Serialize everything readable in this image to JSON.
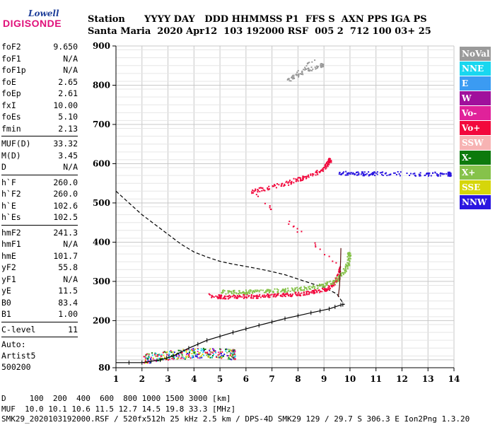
{
  "logo": {
    "line1": "Lowell",
    "line2": "DIGISONDE"
  },
  "header": {
    "labels": "Station      YYYY DAY   DDD HHMMSS P1  FFS S  AXN PPS IGA PS",
    "values": "Santa Maria  2020 Apr12  103 192000 RSF  005 2  712 100 03+ 25"
  },
  "params": [
    {
      "group": [
        {
          "name": "foF2",
          "value": "9.650"
        },
        {
          "name": "foF1",
          "value": "N/A"
        },
        {
          "name": "foF1p",
          "value": "N/A"
        },
        {
          "name": "foE",
          "value": "2.65"
        },
        {
          "name": "foEp",
          "value": "2.61"
        },
        {
          "name": "fxI",
          "value": "10.00"
        },
        {
          "name": "foEs",
          "value": "5.10"
        },
        {
          "name": "fmin",
          "value": "2.13"
        }
      ]
    },
    {
      "group": [
        {
          "name": "MUF(D)",
          "value": "33.32"
        },
        {
          "name": "M(D)",
          "value": "3.45"
        },
        {
          "name": "D",
          "value": "N/A"
        }
      ]
    },
    {
      "group": [
        {
          "name": "h`F",
          "value": "260.0"
        },
        {
          "name": "h`F2",
          "value": "260.0"
        },
        {
          "name": "h`E",
          "value": "102.6"
        },
        {
          "name": "h`Es",
          "value": "102.5"
        }
      ]
    },
    {
      "group": [
        {
          "name": "hmF2",
          "value": "241.3"
        },
        {
          "name": "hmF1",
          "value": "N/A"
        },
        {
          "name": "hmE",
          "value": "101.7"
        },
        {
          "name": "yF2",
          "value": "55.8"
        },
        {
          "name": "yF1",
          "value": "N/A"
        },
        {
          "name": "yE",
          "value": "11.5"
        },
        {
          "name": "B0",
          "value": "83.4"
        },
        {
          "name": "B1",
          "value": "1.00"
        }
      ]
    },
    {
      "group": [
        {
          "name": "C-level",
          "value": "11"
        }
      ]
    }
  ],
  "auto": {
    "line1": "Auto:",
    "line2": "Artist5",
    "line3": "500200"
  },
  "legend": [
    {
      "label": "NoVal",
      "color": "#9a9a9a"
    },
    {
      "label": "NNE",
      "color": "#19d7f0"
    },
    {
      "label": "E",
      "color": "#3b9bf2"
    },
    {
      "label": "W",
      "color": "#a0109c"
    },
    {
      "label": "Vo-",
      "color": "#e0229a"
    },
    {
      "label": "Vo+",
      "color": "#f2083c"
    },
    {
      "label": "SSW",
      "color": "#f7b3b3"
    },
    {
      "label": "X-",
      "color": "#0d7a0d"
    },
    {
      "label": "X+",
      "color": "#86c24a"
    },
    {
      "label": "SSE",
      "color": "#d6d60a"
    },
    {
      "label": "NNW",
      "color": "#2a16e0"
    }
  ],
  "footer": {
    "line1": "D     100  200  400  600  800 1000 1500 3000 [km]",
    "line2": "MUF  10.0 10.1 10.6 11.5 12.7 14.5 19.8 33.3 [MHz]",
    "line3": "SMK29_2020103192000.RSF / 520fx512h 25 kHz 2.5 km / DPS-4D SMK29 129 / 29.7 S 306.3 E Ion2Png 1.3.20"
  },
  "chart_data": {
    "type": "scatter",
    "xlim": [
      1,
      14
    ],
    "ylim": [
      80,
      900
    ],
    "x_ticks": [
      1,
      2,
      3,
      4,
      5,
      6,
      7,
      8,
      9,
      10,
      11,
      12,
      13,
      14
    ],
    "y_ticks": [
      80,
      200,
      300,
      400,
      500,
      600,
      700,
      800,
      900
    ],
    "grid": true,
    "legend_position": "right",
    "echo_traces": [
      {
        "name": "NoVal",
        "points": [
          [
            8.65,
            868
          ],
          [
            7.6,
            815
          ],
          [
            8.2,
            836
          ],
          [
            8.9,
            852
          ]
        ]
      },
      {
        "name": "Vo+",
        "points": [
          [
            4.6,
            265
          ],
          [
            5.0,
            262
          ],
          [
            5.5,
            262
          ],
          [
            6.0,
            263
          ],
          [
            6.5,
            264
          ],
          [
            7.0,
            265
          ],
          [
            7.5,
            267
          ],
          [
            8.0,
            270
          ],
          [
            8.5,
            274
          ],
          [
            9.0,
            280
          ],
          [
            9.3,
            290
          ],
          [
            9.5,
            310
          ],
          [
            9.6,
            340
          ],
          [
            6.2,
            530
          ],
          [
            6.8,
            540
          ],
          [
            7.5,
            550
          ],
          [
            8.0,
            562
          ],
          [
            8.5,
            572
          ],
          [
            9.0,
            590
          ],
          [
            9.2,
            610
          ]
        ]
      },
      {
        "name": "X+",
        "points": [
          [
            5.0,
            275
          ],
          [
            5.5,
            274
          ],
          [
            6.0,
            275
          ],
          [
            6.5,
            276
          ],
          [
            7.0,
            277
          ],
          [
            7.5,
            279
          ],
          [
            8.0,
            282
          ],
          [
            8.5,
            286
          ],
          [
            9.0,
            292
          ],
          [
            9.4,
            302
          ],
          [
            9.7,
            320
          ],
          [
            9.9,
            345
          ],
          [
            9.95,
            370
          ]
        ]
      },
      {
        "name": "NNW",
        "points": [
          [
            9.5,
            578
          ],
          [
            10.0,
            577
          ],
          [
            10.5,
            576
          ],
          [
            11.0,
            576
          ],
          [
            12.0,
            576
          ],
          [
            13.0,
            575
          ],
          [
            13.8,
            575
          ]
        ]
      },
      {
        "name": "E_region",
        "points": [
          [
            2.0,
            105
          ],
          [
            2.5,
            108
          ],
          [
            3.0,
            112
          ],
          [
            3.5,
            115
          ],
          [
            4.0,
            118
          ],
          [
            4.5,
            120
          ],
          [
            5.0,
            118
          ],
          [
            5.5,
            115
          ]
        ]
      }
    ],
    "profile": {
      "points": [
        [
          1.0,
          93
        ],
        [
          2.0,
          93
        ],
        [
          2.7,
          100
        ],
        [
          3.2,
          110
        ],
        [
          3.8,
          130
        ],
        [
          4.5,
          150
        ],
        [
          5.5,
          170
        ],
        [
          6.5,
          188
        ],
        [
          7.5,
          205
        ],
        [
          8.5,
          220
        ],
        [
          9.2,
          230
        ],
        [
          9.65,
          240
        ],
        [
          9.8,
          242
        ]
      ]
    },
    "dashed_curve": {
      "points": [
        [
          1.0,
          530
        ],
        [
          1.5,
          500
        ],
        [
          2.0,
          470
        ],
        [
          2.5,
          445
        ],
        [
          3.0,
          420
        ],
        [
          3.5,
          395
        ],
        [
          4.0,
          375
        ],
        [
          4.5,
          362
        ],
        [
          5.0,
          351
        ],
        [
          5.5,
          344
        ],
        [
          6.0,
          338
        ],
        [
          6.5,
          332
        ],
        [
          7.0,
          325
        ],
        [
          7.5,
          317
        ],
        [
          8.0,
          306
        ],
        [
          8.5,
          295
        ],
        [
          9.0,
          285
        ],
        [
          9.5,
          268
        ],
        [
          9.7,
          248
        ]
      ]
    },
    "trace_line": {
      "points": [
        [
          9.55,
          260
        ],
        [
          9.6,
          290
        ],
        [
          9.62,
          320
        ],
        [
          9.64,
          355
        ],
        [
          9.65,
          385
        ]
      ]
    }
  }
}
